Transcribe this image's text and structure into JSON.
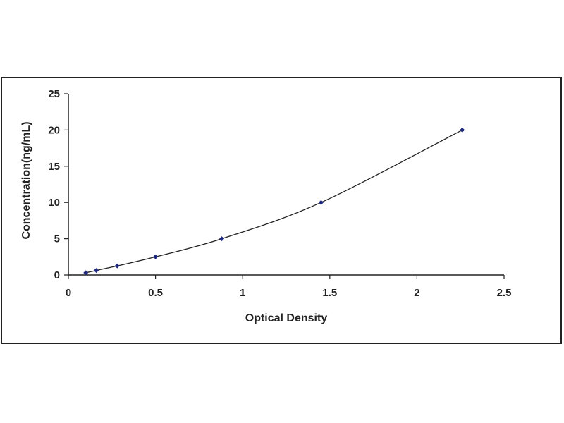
{
  "chart_data": {
    "type": "scatter",
    "title": "",
    "xlabel": "Optical Density",
    "ylabel": "Concentration(ng/mL)",
    "xlim": [
      0,
      2.5
    ],
    "ylim": [
      0,
      25
    ],
    "xticks": [
      "0",
      "0.5",
      "1",
      "1.5",
      "2",
      "2.5"
    ],
    "yticks": [
      "0",
      "5",
      "10",
      "15",
      "20",
      "25"
    ],
    "grid": false,
    "legend": "none",
    "colors": {
      "points": "#1f2a80",
      "curve": "#222222",
      "axis": "#222222"
    },
    "series": [
      {
        "points": [
          {
            "x": 0.1,
            "y": 0.31
          },
          {
            "x": 0.16,
            "y": 0.625
          },
          {
            "x": 0.28,
            "y": 1.25
          },
          {
            "x": 0.5,
            "y": 2.5
          },
          {
            "x": 0.88,
            "y": 5
          },
          {
            "x": 1.45,
            "y": 10
          },
          {
            "x": 2.26,
            "y": 20
          }
        ]
      }
    ]
  }
}
